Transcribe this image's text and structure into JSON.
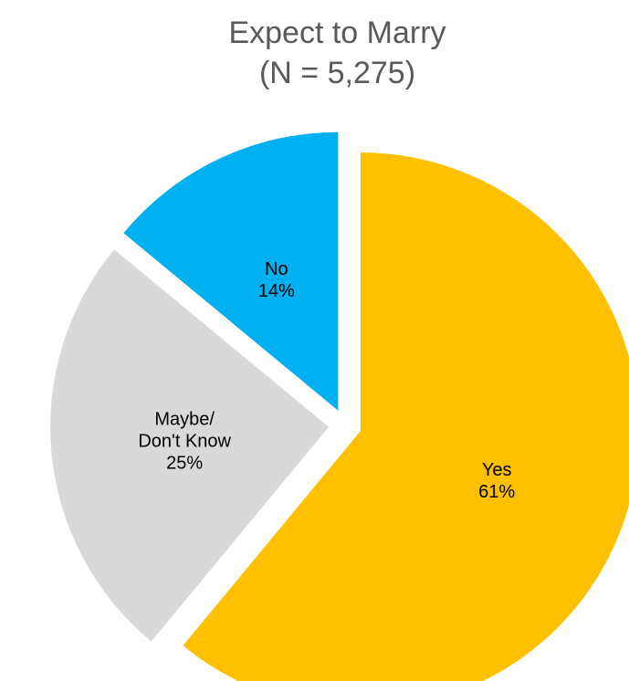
{
  "chart_data": {
    "type": "pie",
    "title": "Expect to Marry",
    "subtitle": "(N = 5,275)",
    "slices": [
      {
        "label": "Yes",
        "label_lines": [
          "Yes"
        ],
        "value": 61,
        "display": "61%",
        "color": "#FFC000"
      },
      {
        "label": "Maybe/ Don't Know",
        "label_lines": [
          "Maybe/",
          "Don't Know"
        ],
        "value": 25,
        "display": "25%",
        "color": "#D9D9D9"
      },
      {
        "label": "No",
        "label_lines": [
          "No"
        ],
        "value": 14,
        "display": "14%",
        "color": "#00B0F0"
      }
    ],
    "legend": "none",
    "exploded": true
  }
}
